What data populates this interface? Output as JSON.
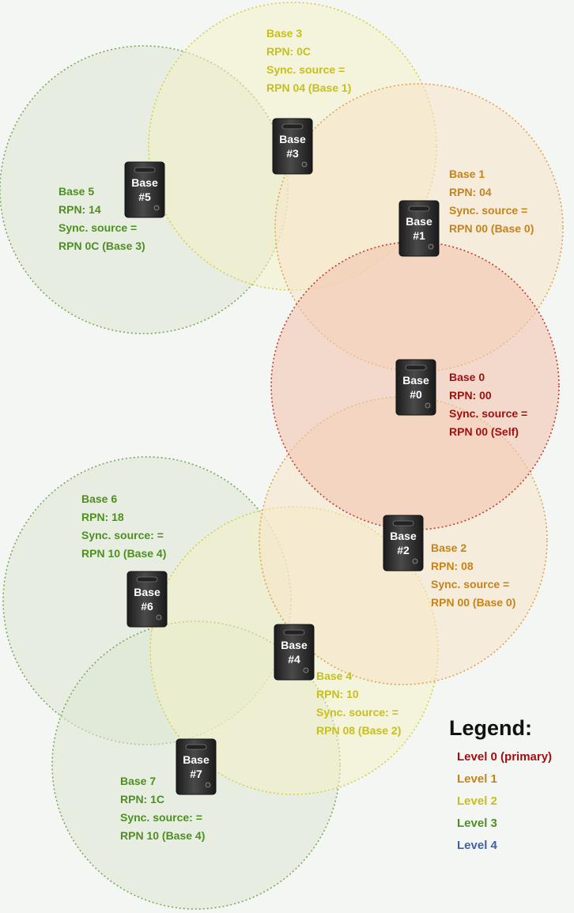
{
  "bases": [
    {
      "id": "base0",
      "device_line1": "Base",
      "device_line2": "#0",
      "level": 0,
      "lines": [
        "Base 0",
        "RPN: 00",
        "Sync. source =",
        "RPN 00 (Self)"
      ]
    },
    {
      "id": "base1",
      "device_line1": "Base",
      "device_line2": "#1",
      "level": 1,
      "lines": [
        "Base 1",
        "RPN: 04",
        "Sync. source =",
        "RPN 00 (Base 0)"
      ]
    },
    {
      "id": "base2",
      "device_line1": "Base",
      "device_line2": "#2",
      "level": 1,
      "lines": [
        "Base 2",
        "RPN: 08",
        "Sync. source =",
        "RPN 00 (Base 0)"
      ]
    },
    {
      "id": "base3",
      "device_line1": "Base",
      "device_line2": "#3",
      "level": 2,
      "lines": [
        "Base 3",
        "RPN: 0C",
        "Sync. source =",
        "RPN 04 (Base 1)"
      ]
    },
    {
      "id": "base4",
      "device_line1": "Base",
      "device_line2": "#4",
      "level": 2,
      "lines": [
        "Base 4",
        "RPN: 10",
        "Sync. source: =",
        "RPN 08 (Base 2)"
      ]
    },
    {
      "id": "base5",
      "device_line1": "Base",
      "device_line2": "#5",
      "level": 3,
      "lines": [
        "Base 5",
        "RPN: 14",
        "Sync. source =",
        "RPN 0C (Base 3)"
      ]
    },
    {
      "id": "base6",
      "device_line1": "Base",
      "device_line2": "#6",
      "level": 3,
      "lines": [
        "Base 6",
        "RPN: 18",
        "Sync. source: =",
        "RPN 10 (Base 4)"
      ]
    },
    {
      "id": "base7",
      "device_line1": "Base",
      "device_line2": "#7",
      "level": 3,
      "lines": [
        "Base 7",
        "RPN: 1C",
        "Sync. source: =",
        "RPN 10 (Base 4)"
      ]
    }
  ],
  "legend": {
    "title": "Legend:",
    "items": [
      {
        "label": "Level 0 (primary)",
        "color": "#a30f0f"
      },
      {
        "label": "Level 1",
        "color": "#c6831a"
      },
      {
        "label": "Level 2",
        "color": "#c7bf1c"
      },
      {
        "label": "Level 3",
        "color": "#4e8f22"
      },
      {
        "label": "Level 4",
        "color": "#3e62a6"
      }
    ]
  },
  "level_colors": {
    "0": {
      "fill": "#f2c7b1",
      "stroke": "#c0392b"
    },
    "1": {
      "fill": "#f8e3c8",
      "stroke": "#e3a24a"
    },
    "2": {
      "fill": "#f4f1c6",
      "stroke": "#d6cf4a"
    },
    "3": {
      "fill": "#dde8d2",
      "stroke": "#7aa85a"
    }
  }
}
